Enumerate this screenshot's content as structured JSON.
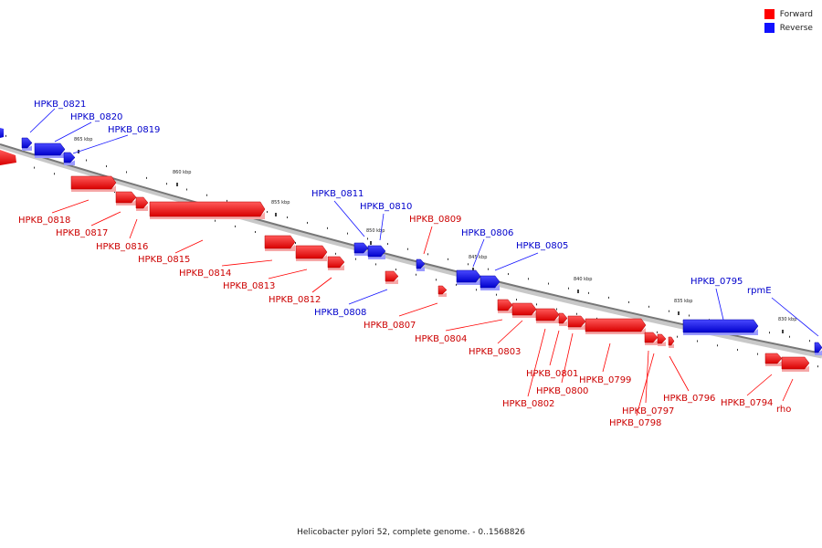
{
  "legend": {
    "forward_label": "Forward",
    "reverse_label": "Reverse",
    "forward_color": "#ff0000",
    "reverse_color": "#1111ff"
  },
  "caption": "Helicobacter pylori 52, complete genome. - 0..1568826",
  "scale_ticks": [
    "865 kbp",
    "860 kbp",
    "855 kbp",
    "850 kbp",
    "845 kbp",
    "840 kbp",
    "835 kbp",
    "830 kbp"
  ],
  "genes": [
    {
      "label": "HPKB_0821",
      "strand": "reverse"
    },
    {
      "label": "HPKB_0820",
      "strand": "reverse"
    },
    {
      "label": "HPKB_0819",
      "strand": "reverse"
    },
    {
      "label": "HPKB_0818",
      "strand": "forward"
    },
    {
      "label": "HPKB_0817",
      "strand": "forward"
    },
    {
      "label": "HPKB_0816",
      "strand": "forward"
    },
    {
      "label": "HPKB_0815",
      "strand": "forward"
    },
    {
      "label": "HPKB_0814",
      "strand": "forward"
    },
    {
      "label": "HPKB_0813",
      "strand": "forward"
    },
    {
      "label": "HPKB_0812",
      "strand": "forward"
    },
    {
      "label": "HPKB_0811",
      "strand": "reverse"
    },
    {
      "label": "HPKB_0810",
      "strand": "reverse"
    },
    {
      "label": "HPKB_0809",
      "strand": "forward"
    },
    {
      "label": "HPKB_0808",
      "strand": "reverse"
    },
    {
      "label": "HPKB_0807",
      "strand": "forward"
    },
    {
      "label": "HPKB_0806",
      "strand": "reverse"
    },
    {
      "label": "HPKB_0805",
      "strand": "reverse"
    },
    {
      "label": "HPKB_0804",
      "strand": "forward"
    },
    {
      "label": "HPKB_0803",
      "strand": "forward"
    },
    {
      "label": "HPKB_0802",
      "strand": "forward"
    },
    {
      "label": "HPKB_0801",
      "strand": "forward"
    },
    {
      "label": "HPKB_0800",
      "strand": "forward"
    },
    {
      "label": "HPKB_0799",
      "strand": "forward"
    },
    {
      "label": "HPKB_0798",
      "strand": "forward"
    },
    {
      "label": "HPKB_0797",
      "strand": "forward"
    },
    {
      "label": "HPKB_0796",
      "strand": "forward"
    },
    {
      "label": "HPKB_0795",
      "strand": "reverse"
    },
    {
      "label": "rpmE",
      "strand": "reverse"
    },
    {
      "label": "HPKB_0794",
      "strand": "forward"
    },
    {
      "label": "rho",
      "strand": "forward"
    }
  ]
}
